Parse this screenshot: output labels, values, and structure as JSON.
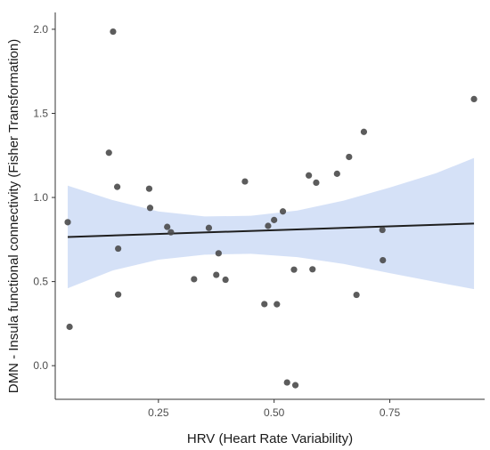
{
  "chart_data": {
    "type": "scatter",
    "title": "",
    "xlabel": "HRV (Heart Rate Variability)",
    "ylabel": "DMN - Insula functional connectivity (Fisher Transformation)",
    "xlim": [
      0.027,
      0.955
    ],
    "ylim": [
      -0.2,
      2.1
    ],
    "x_ticks": [
      0.25,
      0.5,
      0.75
    ],
    "x_tick_labels": [
      "0.25",
      "0.50",
      "0.75"
    ],
    "y_ticks": [
      0.0,
      0.5,
      1.0,
      1.5,
      2.0
    ],
    "y_tick_labels": [
      "0.0",
      "0.5",
      "1.0",
      "1.5",
      "2.0"
    ],
    "grid": false,
    "legend": "none",
    "points": [
      {
        "x": 0.054,
        "y": 0.853
      },
      {
        "x": 0.058,
        "y": 0.231
      },
      {
        "x": 0.143,
        "y": 1.266
      },
      {
        "x": 0.152,
        "y": 1.986
      },
      {
        "x": 0.161,
        "y": 1.063
      },
      {
        "x": 0.163,
        "y": 0.696
      },
      {
        "x": 0.163,
        "y": 0.423
      },
      {
        "x": 0.23,
        "y": 1.052
      },
      {
        "x": 0.232,
        "y": 0.938
      },
      {
        "x": 0.269,
        "y": 0.825
      },
      {
        "x": 0.277,
        "y": 0.793
      },
      {
        "x": 0.327,
        "y": 0.514
      },
      {
        "x": 0.359,
        "y": 0.819
      },
      {
        "x": 0.375,
        "y": 0.54
      },
      {
        "x": 0.38,
        "y": 0.668
      },
      {
        "x": 0.395,
        "y": 0.511
      },
      {
        "x": 0.437,
        "y": 1.095
      },
      {
        "x": 0.479,
        "y": 0.366
      },
      {
        "x": 0.487,
        "y": 0.831
      },
      {
        "x": 0.5,
        "y": 0.866
      },
      {
        "x": 0.506,
        "y": 0.365
      },
      {
        "x": 0.519,
        "y": 0.917
      },
      {
        "x": 0.528,
        "y": -0.1
      },
      {
        "x": 0.543,
        "y": 0.571
      },
      {
        "x": 0.546,
        "y": -0.116
      },
      {
        "x": 0.575,
        "y": 1.131
      },
      {
        "x": 0.583,
        "y": 0.573
      },
      {
        "x": 0.591,
        "y": 1.088
      },
      {
        "x": 0.636,
        "y": 1.141
      },
      {
        "x": 0.662,
        "y": 1.241
      },
      {
        "x": 0.678,
        "y": 0.421
      },
      {
        "x": 0.694,
        "y": 1.39
      },
      {
        "x": 0.734,
        "y": 0.807
      },
      {
        "x": 0.735,
        "y": 0.627
      },
      {
        "x": 0.932,
        "y": 1.585
      }
    ],
    "fit_line": {
      "x": [
        0.054,
        0.932
      ],
      "y": [
        0.765,
        0.845
      ]
    },
    "confidence_band": {
      "x": [
        0.054,
        0.15,
        0.25,
        0.35,
        0.45,
        0.55,
        0.65,
        0.75,
        0.85,
        0.932
      ],
      "lower": [
        0.46,
        0.565,
        0.63,
        0.66,
        0.665,
        0.645,
        0.605,
        0.55,
        0.497,
        0.455
      ],
      "upper": [
        1.07,
        0.985,
        0.917,
        0.887,
        0.891,
        0.922,
        0.981,
        1.059,
        1.144,
        1.235
      ]
    },
    "colors": {
      "point": "#4a4a4a",
      "point_opacity": 0.9,
      "line": "#1f1f1f",
      "band": "#c7d7f4",
      "band_opacity": 0.75,
      "axis": "#333333",
      "tick_text": "#4d4d4d",
      "axis_title": "#1a1a1a"
    }
  }
}
